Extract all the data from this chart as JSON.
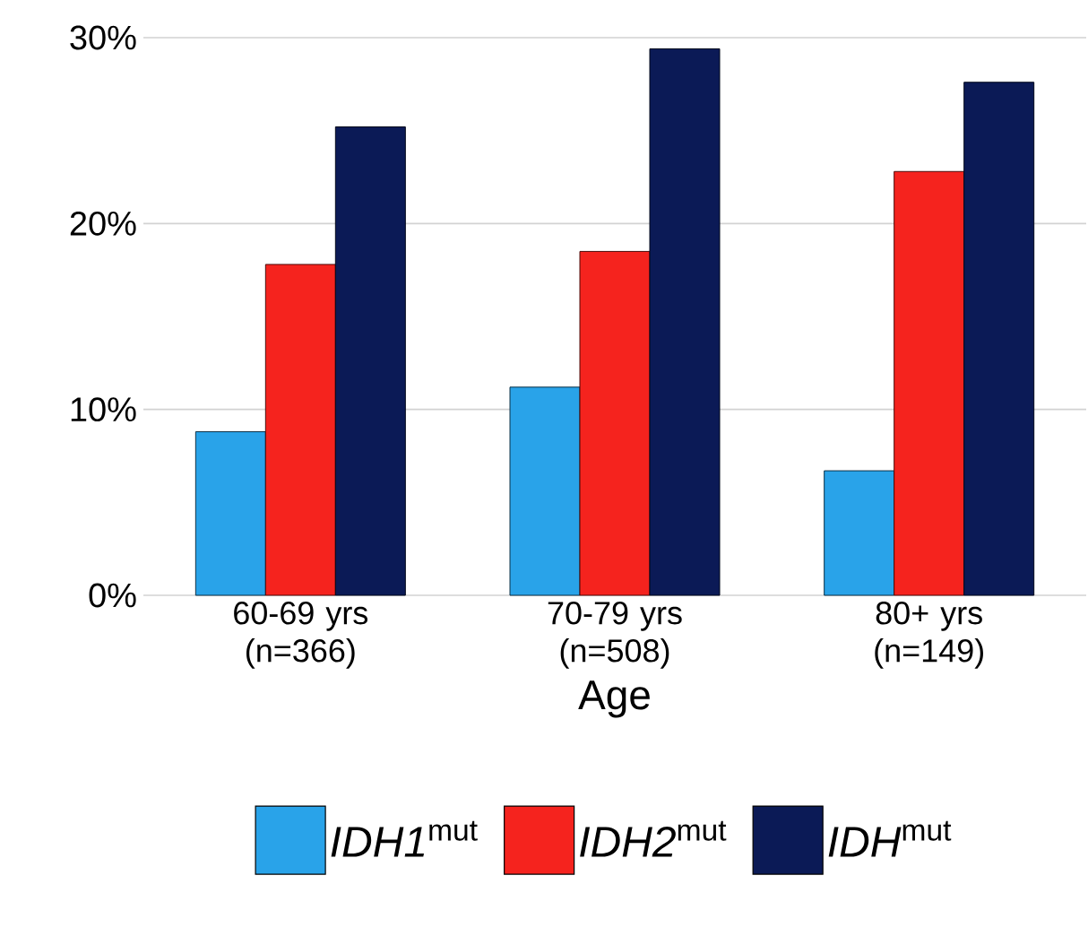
{
  "chart_data": {
    "type": "bar",
    "xlabel": "Age",
    "categories": [
      "60-69 yrs (n=366)",
      "70-79 yrs (n=508)",
      "80+ yrs (n=149)"
    ],
    "series": [
      {
        "name": "*IDH1*$^{mut}$",
        "color": "#29a3e9",
        "values": [
          8.8,
          11.2,
          6.7
        ]
      },
      {
        "name": "*IDH2*$^{mut}$",
        "color": "#f5231e",
        "values": [
          17.8,
          18.5,
          22.8
        ]
      },
      {
        "name": "*IDH*$^{mut}$",
        "color": "#0b1a56",
        "values": [
          25.2,
          29.4,
          27.6
        ]
      }
    ],
    "ylim": [
      0,
      30
    ],
    "yticks": [
      {
        "value": 0,
        "label": "0%"
      },
      {
        "value": 10,
        "label": "10%"
      },
      {
        "value": 20,
        "label": "20%"
      },
      {
        "value": 30,
        "label": "30%"
      }
    ],
    "grid": "y",
    "legend": "bottom"
  }
}
